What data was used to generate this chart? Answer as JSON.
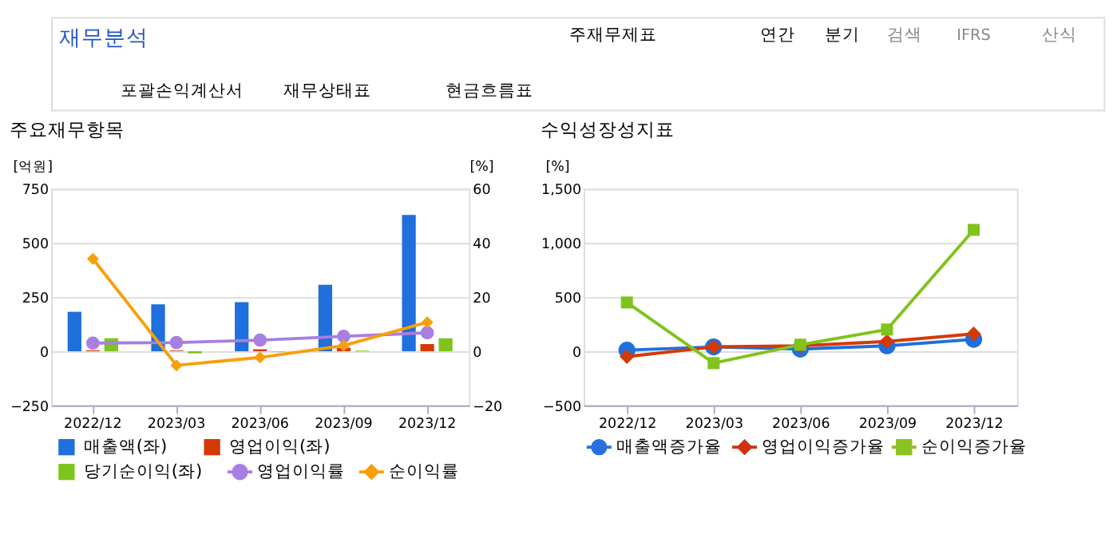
{
  "chart_data": [
    {
      "type": "bar",
      "title": "주요재무항목",
      "categories": [
        "2022/12",
        "2023/03",
        "2023/06",
        "2023/09",
        "2023/12"
      ],
      "ylabel": "[억원]",
      "y2label": "[%]",
      "ylim": [
        -250,
        750
      ],
      "yticks": [
        -250,
        0,
        250,
        500,
        750
      ],
      "y2lim": [
        -20,
        60
      ],
      "y2ticks": [
        -20,
        0,
        20,
        40,
        60
      ],
      "grid": "y",
      "legend": "bottom",
      "annotations": [
        "재무분석",
        "주재무제표",
        "연간",
        "분기",
        "검색",
        "IFRS",
        "산식",
        "포괄손익계산서",
        "재무상태표",
        "현금흐름표"
      ],
      "series": [
        {
          "name": "매출액(좌)",
          "color": "#1f6fdc",
          "values": [
            182,
            216,
            227,
            307,
            629
          ]
        },
        {
          "name": "영업이익(좌)",
          "color": "#d43a08",
          "values": [
            4,
            3,
            9,
            16,
            33
          ]
        },
        {
          "name": "당기순이익(좌)",
          "color": "#7fc31c",
          "values": [
            60,
            -10,
            -2,
            3,
            60
          ]
        },
        {
          "name": "영업이익률",
          "type": "line",
          "axis": "y2",
          "marker": "circle",
          "color": "#a77fe0",
          "values": [
            3.0,
            3.2,
            4.1,
            5.5,
            6.8
          ]
        },
        {
          "name": "순이익률",
          "type": "line",
          "axis": "y2",
          "marker": "diamond",
          "color": "#f99e0b",
          "values": [
            34.1,
            -5.2,
            -2.3,
            2.1,
            10.7
          ]
        }
      ]
    },
    {
      "type": "line",
      "title": "수익성장성지표",
      "categories": [
        "2022/12",
        "2023/03",
        "2023/06",
        "2023/09",
        "2023/12"
      ],
      "ylabel": "[%]",
      "ylim": [
        -500,
        1500
      ],
      "yticks": [
        -500,
        0,
        500,
        {
          "value": 1000,
          "label": "1,000"
        },
        {
          "value": 1500,
          "label": "1,500"
        }
      ],
      "grid": "y",
      "legend": "bottom",
      "series": [
        {
          "name": "매출액증가율",
          "marker": "circle",
          "color": "#2a6fe0",
          "values": [
            10,
            40,
            20,
            50,
            110
          ]
        },
        {
          "name": "영업이익증가율",
          "marker": "diamond",
          "color": "#cc3311",
          "values": [
            -50,
            40,
            50,
            90,
            160
          ]
        },
        {
          "name": "순이익증가율",
          "marker": "square",
          "color": "#8bc220",
          "values": [
            450,
            -110,
            60,
            200,
            1120
          ]
        }
      ]
    }
  ]
}
